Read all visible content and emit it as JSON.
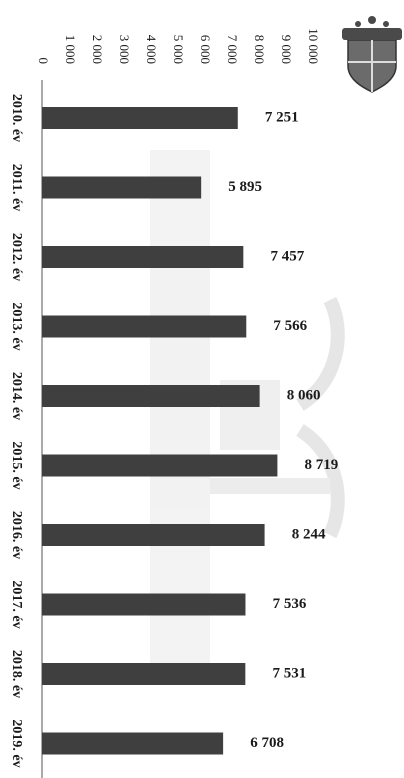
{
  "chart_data": {
    "type": "bar",
    "orientation": "vertical-bars-shown-rotated-90deg-clockwise",
    "categories": [
      "2010. év",
      "2011. év",
      "2012. év",
      "2013. év",
      "2014. év",
      "2015. év",
      "2016. év",
      "2017. év",
      "2018. év",
      "2019. év"
    ],
    "values": [
      7251,
      5895,
      7457,
      7566,
      8060,
      8719,
      8244,
      7536,
      7531,
      6708
    ],
    "data_labels": [
      "7 251",
      "5 895",
      "7 457",
      "7 566",
      "8 060",
      "8 719",
      "8 244",
      "7 536",
      "7 531",
      "6 708"
    ],
    "y_ticks": [
      0,
      1000,
      2000,
      3000,
      4000,
      5000,
      6000,
      7000,
      8000,
      9000,
      10000
    ],
    "y_tick_labels": [
      "0",
      "1 000",
      "2 000",
      "3 000",
      "4 000",
      "5 000",
      "6 000",
      "7 000",
      "8 000",
      "9 000",
      "10 000"
    ],
    "ylim": [
      0,
      10000
    ],
    "title": "",
    "xlabel": "",
    "ylabel": "",
    "grid": false,
    "legend": "none",
    "bar_color": "#3f3f3f"
  },
  "decor": {
    "logo": "coat-of-arms-emblem",
    "watermark": "faint-crest-watermark"
  }
}
